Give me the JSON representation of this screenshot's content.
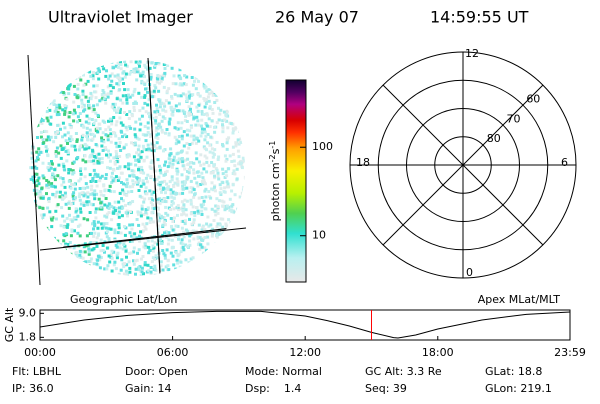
{
  "header": {
    "title": "Ultraviolet Imager",
    "date": "26 May 07",
    "time": "14:59:55 UT"
  },
  "colorbar": {
    "label": "photon cm",
    "exp1": "-2",
    "unit2": "s",
    "exp2": "-1",
    "log": true,
    "lim": [
      3,
      575
    ],
    "ticks": [
      10,
      100
    ]
  },
  "polar": {
    "rlim": [
      90,
      50
    ],
    "rings": [
      80,
      70,
      60
    ],
    "clock_labels": {
      "top": "12",
      "right": "6",
      "bottom": "0",
      "left": "18"
    }
  },
  "chart_data": {
    "type": "line",
    "ylabel": "GC Alt",
    "left_label": "Geographic Lat/Lon",
    "right_label": "Apex MLat/MLT",
    "x": [
      0,
      2,
      4,
      6,
      8,
      10,
      12,
      13,
      14,
      15,
      16,
      16.2,
      17,
      18,
      20,
      22,
      23.983
    ],
    "values": [
      4.9,
      7.0,
      8.4,
      9.2,
      9.6,
      9.6,
      8.2,
      6.8,
      5.2,
      3.3,
      1.7,
      1.6,
      2.5,
      4.3,
      7.0,
      8.7,
      9.4
    ],
    "color": "#000000",
    "marker_x": 15.0,
    "marker_color": "#ff0000",
    "xlim": [
      0,
      23.983
    ],
    "ylim": [
      1.0,
      10.0
    ],
    "xticks": [
      {
        "value": 0,
        "label": "00:00"
      },
      {
        "value": 6,
        "label": "06:00"
      },
      {
        "value": 12,
        "label": "12:00"
      },
      {
        "value": 18,
        "label": "18:00"
      },
      {
        "value": 23.983,
        "label": "23:59"
      }
    ],
    "yticks": [
      {
        "value": 9.0,
        "label": "9.0"
      },
      {
        "value": 1.8,
        "label": "1.8"
      }
    ]
  },
  "info": [
    [
      "Flt: LBHL",
      "Door: Open",
      "Mode: Normal",
      "GC Alt: 3.3 Re",
      "GLat: 18.8"
    ],
    [
      "IP: 36.0",
      "Gain: 14",
      "Dsp:    1.4",
      "Seq: 39",
      "GLon: 219.1"
    ]
  ]
}
